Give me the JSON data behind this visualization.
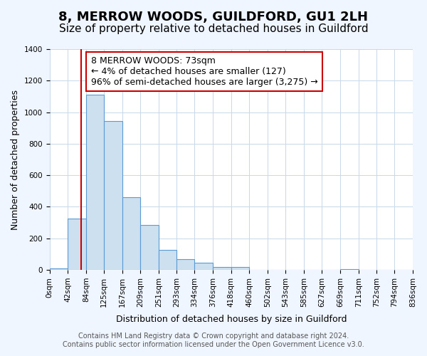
{
  "title": "8, MERROW WOODS, GUILDFORD, GU1 2LH",
  "subtitle": "Size of property relative to detached houses in Guildford",
  "xlabel": "Distribution of detached houses by size in Guildford",
  "ylabel": "Number of detached properties",
  "bar_edges": [
    0,
    42,
    84,
    125,
    167,
    209,
    251,
    293,
    334,
    376,
    418,
    460,
    502,
    543,
    585,
    627,
    669,
    711,
    752,
    794,
    836
  ],
  "bar_heights": [
    10,
    325,
    1110,
    945,
    460,
    285,
    125,
    70,
    45,
    20,
    20,
    0,
    0,
    0,
    0,
    0,
    5,
    0,
    0,
    0
  ],
  "bar_color": "#cce0f0",
  "bar_edge_color": "#5b9bd5",
  "red_line_x": 73,
  "annotation_text": "8 MERROW WOODS: 73sqm\n← 4% of detached houses are smaller (127)\n96% of semi-detached houses are larger (3,275) →",
  "annotation_box_color": "#ffffff",
  "annotation_box_edge": "#cc0000",
  "ylim": [
    0,
    1400
  ],
  "yticks": [
    0,
    200,
    400,
    600,
    800,
    1000,
    1200,
    1400
  ],
  "xtick_labels": [
    "0sqm",
    "42sqm",
    "84sqm",
    "125sqm",
    "167sqm",
    "209sqm",
    "251sqm",
    "293sqm",
    "334sqm",
    "376sqm",
    "418sqm",
    "460sqm",
    "502sqm",
    "543sqm",
    "585sqm",
    "627sqm",
    "669sqm",
    "711sqm",
    "752sqm",
    "794sqm",
    "836sqm"
  ],
  "red_line_color": "#cc0000",
  "footer_line1": "Contains HM Land Registry data © Crown copyright and database right 2024.",
  "footer_line2": "Contains public sector information licensed under the Open Government Licence v3.0.",
  "bg_color": "#f0f6ff",
  "plot_bg_color": "#ffffff",
  "grid_color": "#c8d8e8",
  "title_fontsize": 13,
  "subtitle_fontsize": 11,
  "axis_label_fontsize": 9,
  "tick_fontsize": 7.5,
  "annotation_fontsize": 9,
  "footer_fontsize": 7
}
